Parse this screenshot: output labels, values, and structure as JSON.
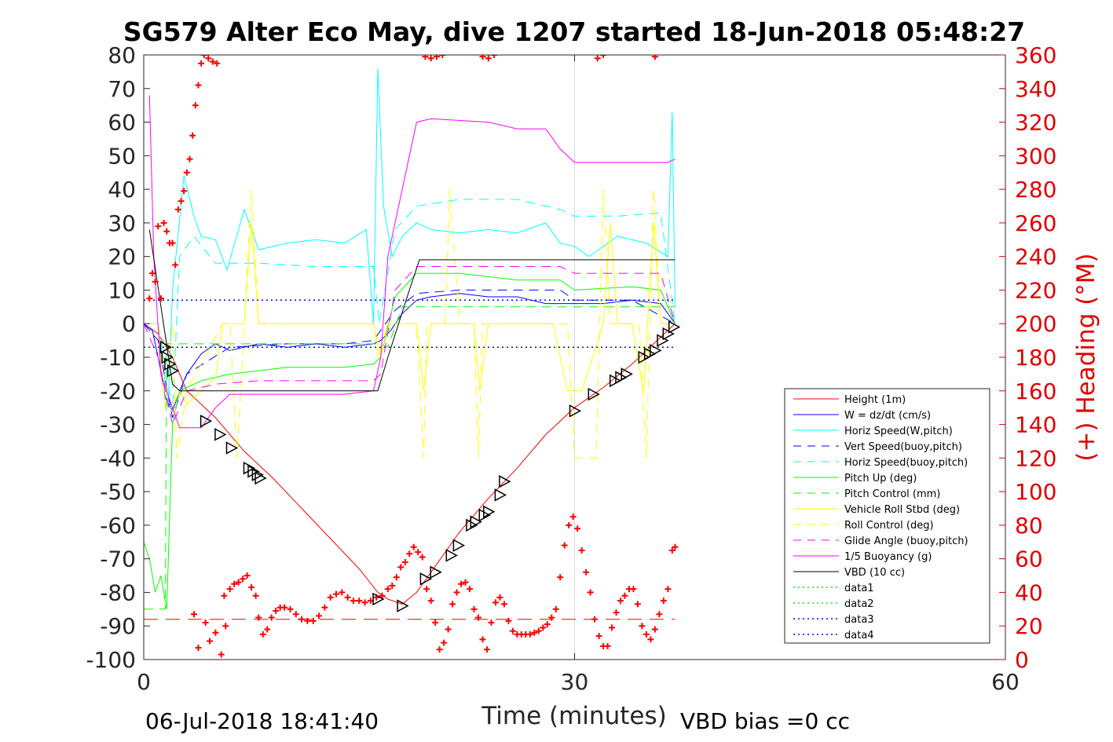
{
  "chart_data": {
    "type": "line",
    "title": "SG579 Alter Eco May, dive 1207 started 18-Jun-2018 05:48:27",
    "xlabel": "Time (minutes)",
    "ylabel": "",
    "y2label": "(+) Heading (°M)",
    "xlim": [
      0,
      60
    ],
    "ylim": [
      -100,
      80
    ],
    "y2lim": [
      0,
      360
    ],
    "xticks": [
      "0",
      "30",
      "60"
    ],
    "yticks": [
      "80",
      "70",
      "60",
      "50",
      "40",
      "30",
      "20",
      "10",
      "0",
      "-10",
      "-20",
      "-30",
      "-40",
      "-50",
      "-60",
      "-70",
      "-80",
      "-90",
      "-100"
    ],
    "y2ticks": [
      "360",
      "340",
      "320",
      "300",
      "280",
      "260",
      "240",
      "220",
      "200",
      "180",
      "160",
      "140",
      "120",
      "100",
      "80",
      "60",
      "40",
      "20",
      "0"
    ],
    "grid": "x at 30 only",
    "legend_position": "lower-right",
    "footer_left": "06-Jul-2018 18:41:40",
    "footer_right": "VBD bias =0 cc",
    "colors": {
      "red": "#ff0000",
      "blue": "#0000ff",
      "cyan": "#00ffff",
      "green": "#00ff00",
      "yellow": "#ffff00",
      "magenta": "#ff00ff",
      "black": "#000000"
    },
    "legend": [
      {
        "name": "Height (1m)",
        "color": "#ff0000",
        "dash": "solid"
      },
      {
        "name": "W = dz/dt (cm/s)",
        "color": "#0000ff",
        "dash": "solid"
      },
      {
        "name": "Horiz Speed(W,pitch)",
        "color": "#00ffff",
        "dash": "solid"
      },
      {
        "name": "Vert Speed(buoy,pitch)",
        "color": "#0000ff",
        "dash": "dashed"
      },
      {
        "name": "Horiz Speed(buoy,pitch)",
        "color": "#00ffff",
        "dash": "dashed"
      },
      {
        "name": "Pitch Up (deg)",
        "color": "#00ff00",
        "dash": "solid"
      },
      {
        "name": "Pitch Control (mm)",
        "color": "#00ff00",
        "dash": "dashed"
      },
      {
        "name": "Vehicle Roll Stbd (deg)",
        "color": "#ffff00",
        "dash": "solid"
      },
      {
        "name": "Roll Control (deg)",
        "color": "#ffff00",
        "dash": "dashed"
      },
      {
        "name": "Glide Angle (buoy,pitch)",
        "color": "#ff00ff",
        "dash": "dashed"
      },
      {
        "name": "1/5 Buoyancy (g)",
        "color": "#ff00ff",
        "dash": "solid"
      },
      {
        "name": "VBD (10 cc)",
        "color": "#000000",
        "dash": "solid"
      },
      {
        "name": "data1",
        "color": "#00ff00",
        "dash": "dotted"
      },
      {
        "name": "data2",
        "color": "#00ff00",
        "dash": "dotted"
      },
      {
        "name": "data3",
        "color": "#0000ff",
        "dash": "dotted"
      },
      {
        "name": "data4",
        "color": "#0000ff",
        "dash": "dotted"
      }
    ],
    "series": [
      {
        "name": "Height (1m)",
        "color": "#ff0000",
        "dash": "solid",
        "width": 1,
        "x": [
          0,
          1,
          2,
          3,
          5,
          7,
          9,
          11,
          13,
          15,
          16.3,
          17,
          18,
          19,
          20,
          22,
          24,
          26,
          28,
          30,
          32,
          34,
          36,
          37
        ],
        "y": [
          0,
          -3,
          -10,
          -20,
          -28,
          -38,
          -46,
          -55,
          -64,
          -73,
          -80,
          -82,
          -83.5,
          -80,
          -74,
          -62,
          -52,
          -43,
          -33,
          -25,
          -19,
          -12,
          -4,
          0
        ]
      },
      {
        "name": "W = dz/dt (cm/s)",
        "color": "#0000ff",
        "dash": "solid",
        "width": 1,
        "x": [
          0,
          0.6,
          1.1,
          1.5,
          2,
          2.5,
          3,
          4,
          5,
          6,
          8,
          10,
          12,
          14,
          16,
          16.5,
          17.2,
          18,
          19,
          20,
          22,
          24,
          26,
          28,
          30,
          32,
          34,
          36,
          37
        ],
        "y": [
          0,
          -2,
          -12,
          -22,
          -26,
          -20,
          -15,
          -9,
          -6,
          -8,
          -6,
          -7,
          -6,
          -7,
          -6,
          -5,
          -2,
          3,
          7,
          8,
          9,
          8,
          8,
          6,
          6,
          6,
          7,
          6,
          0
        ]
      },
      {
        "name": "Horiz Speed(W,pitch)",
        "color": "#00ffff",
        "dash": "solid",
        "width": 1,
        "x": [
          0,
          1,
          1.7,
          2,
          2.8,
          3.5,
          4,
          5,
          5.8,
          6.2,
          7,
          8,
          10,
          12,
          14,
          15.5,
          16,
          16.3,
          16.7,
          17.3,
          18,
          19,
          20,
          22,
          24,
          26,
          28,
          29,
          30,
          31,
          33,
          35,
          36.5,
          36.8,
          37
        ],
        "y": [
          0,
          0,
          -25,
          10,
          44,
          32,
          26,
          25,
          16,
          22,
          34,
          22,
          24,
          25,
          24,
          28,
          0,
          76,
          35,
          20,
          26,
          30,
          28,
          27,
          28,
          27,
          30,
          24,
          23,
          20,
          26,
          24,
          20,
          63,
          5
        ]
      },
      {
        "name": "Vert Speed(buoy,pitch)",
        "color": "#0000ff",
        "dash": "dashed",
        "width": 1,
        "x": [
          0,
          1,
          2,
          3,
          6,
          10,
          14,
          16,
          17.5,
          19,
          22,
          26,
          29,
          30,
          34,
          37
        ],
        "y": [
          0,
          -5,
          -28,
          -15,
          -7,
          -6,
          -6,
          -5,
          4,
          9,
          10,
          10,
          10,
          7,
          7,
          0
        ]
      },
      {
        "name": "Horiz Speed(buoy,pitch)",
        "color": "#00ffff",
        "dash": "dashed",
        "width": 1,
        "x": [
          0,
          1,
          2,
          2.5,
          3.5,
          5,
          8,
          12,
          16,
          16.4,
          17.5,
          19,
          22,
          26,
          29,
          30,
          33,
          36,
          37
        ],
        "y": [
          0,
          0,
          -26,
          20,
          26,
          18,
          18,
          17,
          17,
          0,
          28,
          35,
          37,
          37,
          34,
          32,
          32,
          33,
          0
        ]
      },
      {
        "name": "Pitch Up (deg)",
        "color": "#00ff00",
        "dash": "solid",
        "width": 1,
        "x": [
          0,
          0.4,
          0.8,
          1.2,
          1.6,
          2,
          2.5,
          3,
          4,
          6,
          8,
          10,
          12,
          14,
          16,
          16.5,
          17.5,
          19,
          22,
          26,
          29,
          30,
          34,
          36,
          37
        ],
        "y": [
          -65,
          -70,
          -80,
          -75,
          -85,
          -30,
          -20,
          -19,
          -17,
          -15,
          -14,
          -13,
          -13,
          -13,
          -12,
          -10,
          8,
          15,
          15,
          13,
          13,
          10,
          11,
          10,
          0
        ]
      },
      {
        "name": "Pitch Control (mm)",
        "color": "#00ff00",
        "dash": "dashed",
        "width": 1,
        "x": [
          0,
          1.5,
          1.6,
          2.5,
          16.5,
          17,
          18,
          37
        ],
        "y": [
          -85,
          -85,
          -6,
          -6,
          -6,
          -7,
          5,
          5
        ]
      },
      {
        "name": "Vehicle Roll Stbd (deg)",
        "color": "#ffff00",
        "dash": "solid",
        "width": 1,
        "x": [
          0,
          1,
          1.5,
          2,
          2.5,
          3,
          4,
          5,
          5.5,
          6,
          7,
          7.5,
          8,
          16,
          16.5,
          17,
          18,
          19,
          19.5,
          20,
          23,
          23.4,
          24,
          28.5,
          29.5,
          30.5,
          32,
          32.5,
          33,
          34,
          34.8,
          35.5,
          36,
          37
        ],
        "y": [
          0,
          0,
          -25,
          -25,
          -20,
          -24,
          -20,
          -16,
          0,
          0,
          0,
          30,
          0,
          0,
          -10,
          0,
          0,
          0,
          -20,
          0,
          0,
          -20,
          0,
          0,
          -20,
          -20,
          0,
          30,
          0,
          0,
          -20,
          30,
          0,
          0
        ]
      },
      {
        "name": "Roll Control (deg)",
        "color": "#ffff00",
        "dash": "dashed",
        "width": 1,
        "x": [
          0,
          1,
          1.5,
          2,
          2.3,
          3,
          5.5,
          6,
          6.5,
          7,
          7.5,
          8,
          16,
          16.3,
          17,
          19,
          19.5,
          19.7,
          20,
          21,
          21.3,
          22,
          23,
          23.3,
          23.6,
          24,
          29.5,
          30,
          31.5,
          32,
          32.5,
          33,
          34.5,
          35,
          35.5,
          36,
          37
        ],
        "y": [
          0,
          0,
          -25,
          0,
          -40,
          -20,
          0,
          0,
          -40,
          0,
          40,
          0,
          0,
          -10,
          0,
          0,
          -40,
          0,
          0,
          0,
          40,
          0,
          0,
          -40,
          0,
          0,
          0,
          -40,
          -40,
          40,
          0,
          0,
          0,
          -40,
          40,
          0,
          0
        ]
      },
      {
        "name": "Glide Angle (buoy,pitch)",
        "color": "#ff00ff",
        "dash": "dashed",
        "width": 1,
        "x": [
          0,
          1,
          2,
          3,
          5,
          8,
          12,
          16,
          16.5,
          17.5,
          19,
          22,
          26,
          29,
          30,
          34,
          36,
          37
        ],
        "y": [
          0,
          -10,
          -30,
          -20,
          -18,
          -17,
          -17,
          -17,
          -15,
          10,
          17,
          17,
          17,
          17,
          15,
          15,
          15,
          0
        ]
      },
      {
        "name": "1/5 Buoyancy (g)",
        "color": "#ff00ff",
        "dash": "solid",
        "width": 1,
        "x": [
          0.4,
          0.7,
          1.2,
          2,
          2.5,
          3,
          4,
          5,
          6,
          8,
          10,
          12,
          14,
          16,
          16.5,
          17,
          19,
          20,
          24,
          26,
          28,
          29,
          30,
          32,
          34,
          36.5,
          37
        ],
        "y": [
          68,
          20,
          -15,
          -25,
          -31,
          -31,
          -31,
          -25,
          -21,
          -21,
          -21,
          -21,
          -21,
          -20,
          -10,
          20,
          60,
          61,
          60,
          58,
          58,
          52,
          48,
          48,
          48,
          48,
          49
        ]
      },
      {
        "name": "VBD (10 cc)",
        "color": "#000000",
        "dash": "solid",
        "width": 1,
        "x": [
          0.4,
          2,
          2.5,
          4,
          8,
          12,
          16,
          16.3,
          17,
          18.5,
          19.2,
          22,
          26,
          30,
          34,
          36,
          37
        ],
        "y": [
          28,
          -18,
          -20,
          -20,
          -20,
          -20,
          -20,
          -20,
          -10,
          10,
          19,
          19,
          19,
          19,
          19,
          19,
          19
        ]
      },
      {
        "name": "data1",
        "color": "#00ff00",
        "dash": "dotted",
        "width": 1,
        "x": [],
        "y": []
      },
      {
        "name": "data2",
        "color": "#00ff00",
        "dash": "dotted",
        "width": 1,
        "x": [],
        "y": []
      },
      {
        "name": "data3",
        "color": "#0000ff",
        "dash": "dotted",
        "width": 1.5,
        "x": [
          0,
          37
        ],
        "y": [
          7,
          7
        ]
      },
      {
        "name": "data4",
        "color": "#0000ff",
        "dash": "dotted",
        "width": 1.5,
        "x": [
          0,
          37
        ],
        "y": [
          -7,
          -7
        ]
      }
    ],
    "extra_lines": [
      {
        "color": "#ff0000",
        "dash": "longdash",
        "x": [
          0,
          37
        ],
        "y": [
          -88,
          -88
        ]
      }
    ],
    "triangle_markers": {
      "color": "#000000",
      "x": [
        1.5,
        1.6,
        1.8,
        2.0,
        4.3,
        5.3,
        6.1,
        7.3,
        7.6,
        7.9,
        8.1,
        16.3,
        18.0,
        19.6,
        20.3,
        21.4,
        21.9,
        22.8,
        23.1,
        23.7,
        24.0,
        24.8,
        25.1,
        30.0,
        31.3,
        32.8,
        33.2,
        33.6,
        34.8,
        35.2,
        35.6,
        36.1,
        36.5,
        36.9
      ],
      "y": [
        -7,
        -10,
        -12,
        -14,
        -29,
        -33,
        -37,
        -43,
        -44,
        -45,
        -46,
        -82,
        -84,
        -76,
        -74,
        -69,
        -66,
        -60,
        -59,
        -57,
        -56,
        -51,
        -47,
        -26,
        -21,
        -17,
        -16,
        -15,
        -10,
        -9,
        -8,
        -5,
        -3,
        -1
      ]
    },
    "heading_markers": {
      "color": "#ff0000",
      "axis": "right",
      "x": [
        0.4,
        0.6,
        0.8,
        1.0,
        1.2,
        1.4,
        1.6,
        1.8,
        2.0,
        2.2,
        2.4,
        2.6,
        2.8,
        3.0,
        3.2,
        3.4,
        3.6,
        3.8,
        4.0,
        4.2,
        4.5,
        4.8,
        5.1,
        5.4,
        5.7,
        3.5,
        3.8,
        4.3,
        4.6,
        5.0,
        5.6,
        6.0,
        6.3,
        6.6,
        6.9,
        7.2,
        7.5,
        7.8,
        8.0,
        8.3,
        8.6,
        8.9,
        9.2,
        9.5,
        9.8,
        10.2,
        10.6,
        11.0,
        11.4,
        11.8,
        12.2,
        12.6,
        13.0,
        13.4,
        13.8,
        14.2,
        14.6,
        15.0,
        15.4,
        15.8,
        16.2,
        16.6,
        17.0,
        17.3,
        17.6,
        17.9,
        18.2,
        18.5,
        18.8,
        19.1,
        19.4,
        19.7,
        20.0,
        20.3,
        20.6,
        20.9,
        21.2,
        21.5,
        21.8,
        22.1,
        22.4,
        22.7,
        23.0,
        23.3,
        23.6,
        23.9,
        24.2,
        24.5,
        24.8,
        25.1,
        25.4,
        25.7,
        26.0,
        26.3,
        26.6,
        26.9,
        27.2,
        27.5,
        27.8,
        28.1,
        28.4,
        28.7,
        29.0,
        29.3,
        29.6,
        29.9,
        30.2,
        30.5,
        30.8,
        31.1,
        31.4,
        31.7,
        32.0,
        32.3,
        32.6,
        32.9,
        33.2,
        33.5,
        33.8,
        34.1,
        34.4,
        34.7,
        35.0,
        35.3,
        35.6,
        35.9,
        36.2,
        36.5,
        36.8,
        37.0,
        19.6,
        20.0,
        20.4,
        20.8,
        23.6,
        24.0,
        24.4,
        31.6,
        32.0,
        35.6
      ],
      "y": [
        215,
        230,
        225,
        258,
        215,
        260,
        255,
        248,
        248,
        235,
        268,
        273,
        279,
        290,
        298,
        312,
        330,
        342,
        355,
        360,
        358,
        356,
        355,
        3,
        20,
        27,
        7,
        22,
        11,
        16,
        38,
        42,
        45,
        46,
        48,
        50,
        43,
        38,
        25,
        15,
        18,
        25,
        29,
        31,
        31,
        30,
        27,
        24,
        23,
        23,
        26,
        31,
        37,
        39,
        40,
        37,
        35,
        35,
        34,
        35,
        37,
        38,
        42,
        44,
        49,
        55,
        58,
        63,
        67,
        64,
        61,
        42,
        35,
        22,
        6,
        10,
        18,
        33,
        40,
        45,
        46,
        42,
        30,
        25,
        12,
        6,
        22,
        34,
        37,
        33,
        23,
        17,
        15,
        15,
        15,
        15,
        16,
        17,
        19,
        21,
        25,
        30,
        49,
        68,
        80,
        85,
        78,
        65,
        52,
        40,
        24,
        14,
        8,
        8,
        19,
        28,
        35,
        38,
        42,
        42,
        33,
        20,
        15,
        12,
        18,
        27,
        35,
        42,
        65,
        67,
        359,
        358,
        359,
        360,
        359,
        358,
        360,
        358,
        360,
        359
      ]
    }
  }
}
